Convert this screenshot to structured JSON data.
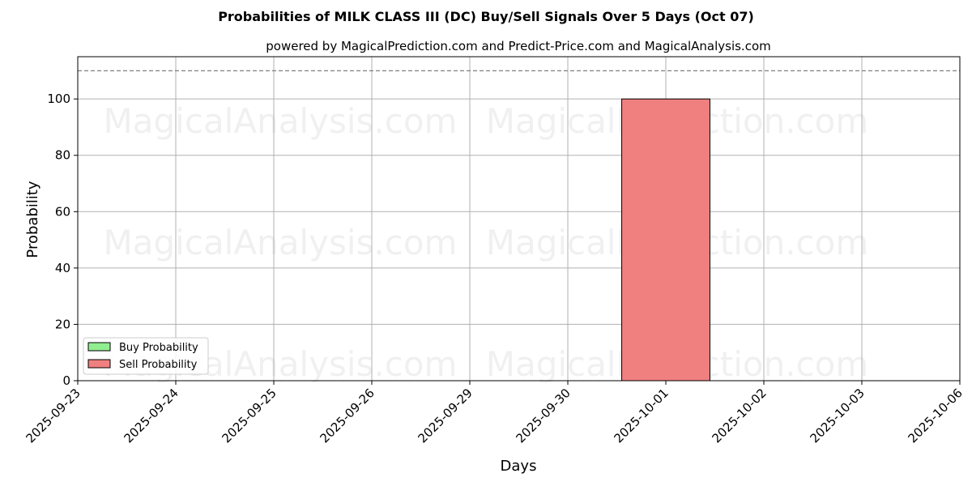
{
  "chart_data": {
    "type": "bar",
    "title": "Probabilities of MILK CLASS III (DC) Buy/Sell Signals Over 5 Days (Oct 07)",
    "subtitle": "powered by MagicalPrediction.com and Predict-Price.com and MagicalAnalysis.com",
    "xlabel": "Days",
    "ylabel": "Probability",
    "categories": [
      "2025-09-23",
      "2025-09-24",
      "2025-09-25",
      "2025-09-26",
      "2025-09-29",
      "2025-09-30",
      "2025-10-01",
      "2025-10-02",
      "2025-10-03",
      "2025-10-06"
    ],
    "series": [
      {
        "name": "Buy Probability",
        "color": "#90ee90",
        "values": [
          0,
          0,
          0,
          0,
          0,
          0,
          0,
          0,
          0,
          0
        ]
      },
      {
        "name": "Sell Probability",
        "color": "#f08080",
        "values": [
          0,
          0,
          0,
          0,
          0,
          0,
          100,
          0,
          0,
          0
        ]
      }
    ],
    "ylim": [
      0,
      115
    ],
    "yticks": [
      0,
      20,
      40,
      60,
      80,
      100
    ],
    "threshold_line": 110,
    "grid": true,
    "legend_position": "lower-left",
    "watermarks": [
      "MagicalAnalysis.com",
      "MagicalPrediction.com"
    ]
  }
}
